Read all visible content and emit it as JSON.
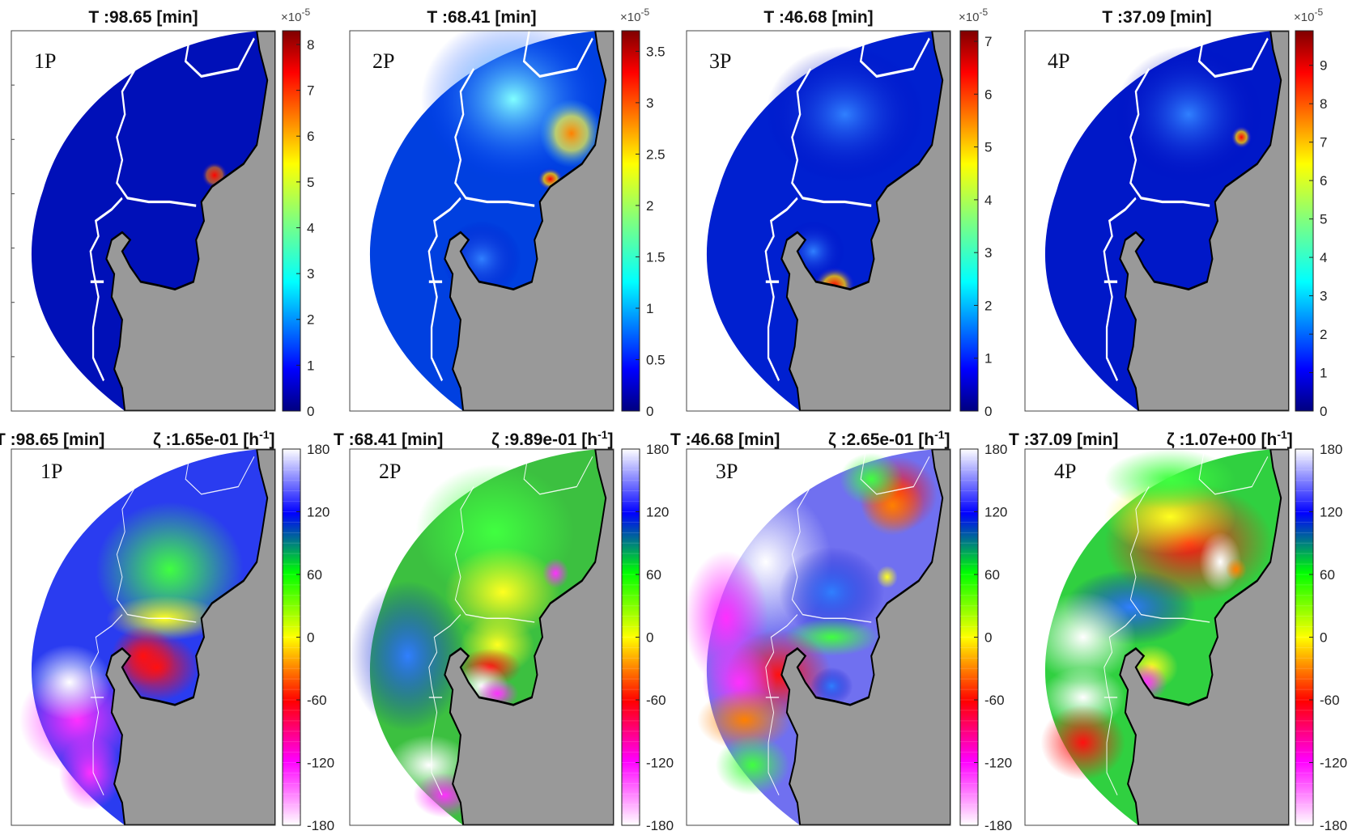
{
  "chart_data": [
    {
      "type": "heatmap",
      "panel": "1P",
      "row": "amplitude",
      "title": "T :98.65 [min]",
      "colorbar": {
        "ticks": [
          "0",
          "1",
          "2",
          "3",
          "4",
          "5",
          "6",
          "7",
          "8"
        ],
        "range": [
          0,
          8.3
        ],
        "exponent": "×10",
        "exponent_power": "-5"
      }
    },
    {
      "type": "heatmap",
      "panel": "2P",
      "row": "amplitude",
      "title": "T :68.41 [min]",
      "colorbar": {
        "ticks": [
          "0",
          "0.5",
          "1",
          "1.5",
          "2",
          "2.5",
          "3",
          "3.5"
        ],
        "range": [
          0,
          3.7
        ],
        "exponent": "×10",
        "exponent_power": "-5"
      }
    },
    {
      "type": "heatmap",
      "panel": "3P",
      "row": "amplitude",
      "title": "T :46.68 [min]",
      "colorbar": {
        "ticks": [
          "0",
          "1",
          "2",
          "3",
          "4",
          "5",
          "6",
          "7"
        ],
        "range": [
          0,
          7.2
        ],
        "exponent": "×10",
        "exponent_power": "-5"
      }
    },
    {
      "type": "heatmap",
      "panel": "4P",
      "row": "amplitude",
      "title": "T :37.09 [min]",
      "colorbar": {
        "ticks": [
          "0",
          "1",
          "2",
          "3",
          "4",
          "5",
          "6",
          "7",
          "8",
          "9"
        ],
        "range": [
          0,
          9.9
        ],
        "exponent": "×10",
        "exponent_power": "-5"
      }
    },
    {
      "type": "heatmap",
      "panel": "1P",
      "row": "phase",
      "title": "T :98.65 [min]",
      "zeta": "ζ :1.65e-01 [h",
      "zeta_power": "-1",
      "zeta_close": "]",
      "colorbar": {
        "ticks": [
          "180",
          "120",
          "60",
          "0",
          "-60",
          "-120",
          "-180"
        ],
        "range": [
          -180,
          180
        ]
      }
    },
    {
      "type": "heatmap",
      "panel": "2P",
      "row": "phase",
      "title": "T :68.41 [min]",
      "zeta": "ζ :9.89e-01 [h",
      "zeta_power": "-1",
      "zeta_close": "]",
      "colorbar": {
        "ticks": [
          "180",
          "120",
          "60",
          "0",
          "-60",
          "-120",
          "-180"
        ],
        "range": [
          -180,
          180
        ]
      }
    },
    {
      "type": "heatmap",
      "panel": "3P",
      "row": "phase",
      "title": "T :46.68 [min]",
      "zeta": "ζ :2.65e-01 [h",
      "zeta_power": "-1",
      "zeta_close": "]",
      "colorbar": {
        "ticks": [
          "180",
          "120",
          "60",
          "0",
          "-60",
          "-120",
          "-180"
        ],
        "range": [
          -180,
          180
        ]
      }
    },
    {
      "type": "heatmap",
      "panel": "4P",
      "row": "phase",
      "title": "T :37.09 [min]",
      "zeta": "ζ :1.07e+00 [h",
      "zeta_power": "-1",
      "zeta_close": "]",
      "colorbar": {
        "ticks": [
          "180",
          "120",
          "60",
          "0",
          "-60",
          "-120",
          "-180"
        ],
        "range": [
          -180,
          180
        ]
      }
    }
  ]
}
